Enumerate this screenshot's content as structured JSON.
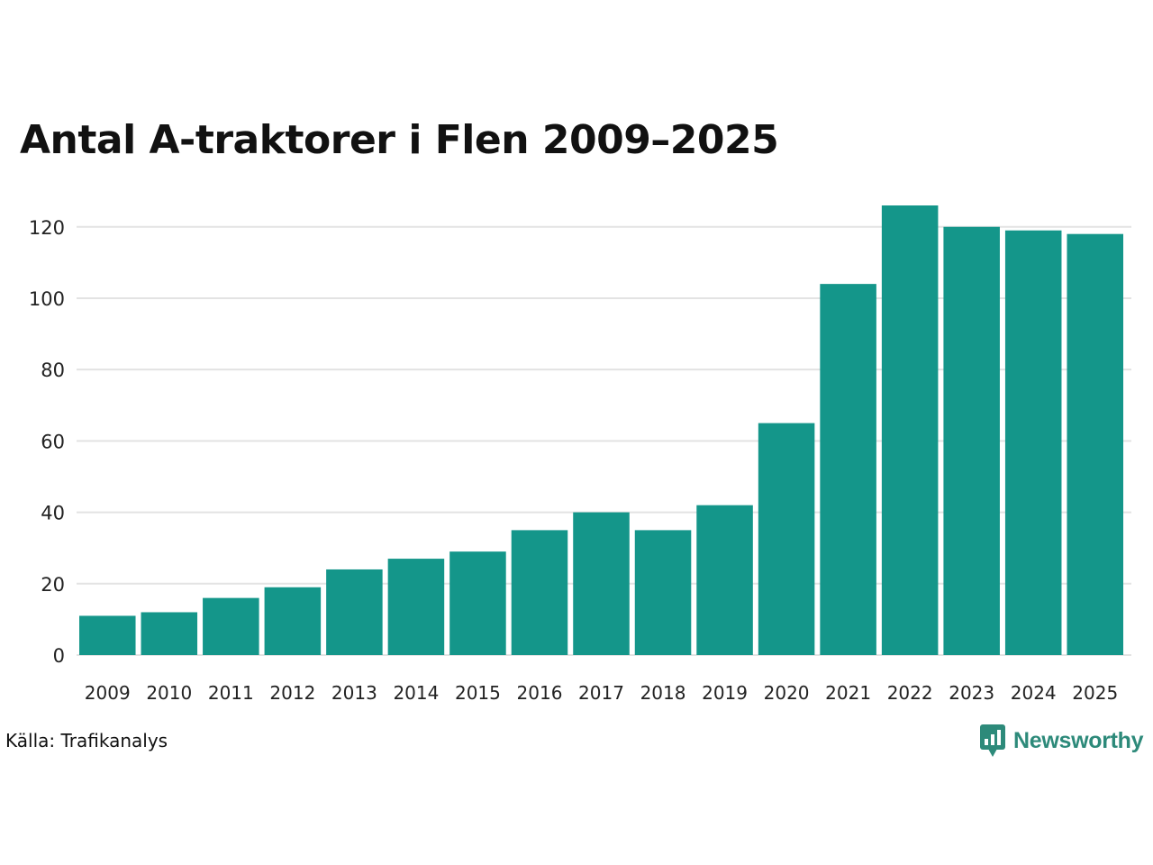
{
  "chart_data": {
    "type": "bar",
    "title": "Antal A-traktorer i Flen 2009–2025",
    "xlabel": "",
    "ylabel": "",
    "categories": [
      "2009",
      "2010",
      "2011",
      "2012",
      "2013",
      "2014",
      "2015",
      "2016",
      "2017",
      "2018",
      "2019",
      "2020",
      "2021",
      "2022",
      "2023",
      "2024",
      "2025"
    ],
    "values": [
      11,
      12,
      16,
      19,
      24,
      27,
      29,
      35,
      40,
      35,
      42,
      65,
      104,
      126,
      120,
      119,
      118
    ],
    "ylim": [
      0,
      126
    ],
    "yticks": [
      0,
      20,
      40,
      60,
      80,
      100,
      120
    ],
    "grid": true,
    "bar_color": "#14968a",
    "grid_color": "#e3e3e3"
  },
  "footer": {
    "source": "Källa: Trafikanalys",
    "brand": "Newsworthy",
    "brand_color": "#2d8a7a",
    "brand_icon": "bar-chart-speech-bubble-icon"
  }
}
